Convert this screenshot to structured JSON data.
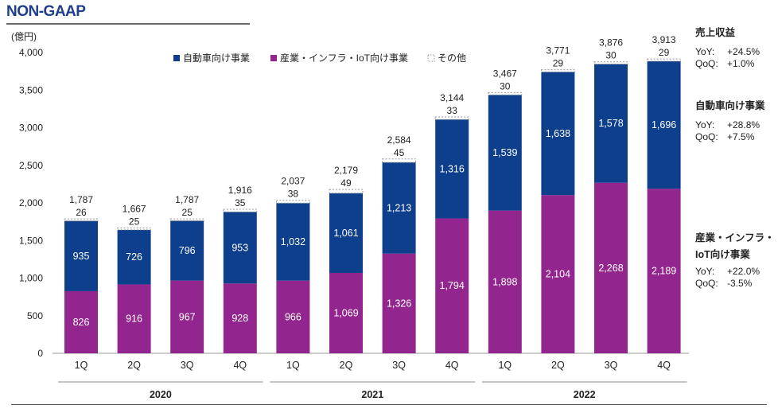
{
  "header": {
    "title": "NON-GAAP"
  },
  "chart_data": {
    "type": "bar",
    "stacked": true,
    "unit_label": "(億円)",
    "ylim": [
      0,
      4000
    ],
    "y_ticks": [
      0,
      500,
      1000,
      1500,
      2000,
      2500,
      3000,
      3500,
      4000
    ],
    "y_tick_labels": [
      "0",
      "500",
      "1,000",
      "1,500",
      "2,000",
      "2,500",
      "3,000",
      "3,500",
      "4,000"
    ],
    "categories": [
      "1Q",
      "2Q",
      "3Q",
      "4Q",
      "1Q",
      "2Q",
      "3Q",
      "4Q",
      "1Q",
      "2Q",
      "3Q",
      "4Q"
    ],
    "years": [
      {
        "label": "2020",
        "start": 0,
        "end": 3
      },
      {
        "label": "2021",
        "start": 4,
        "end": 7
      },
      {
        "label": "2022",
        "start": 8,
        "end": 11
      }
    ],
    "series": [
      {
        "name": "産業・インフラ・IoT向け事業",
        "color": "#93268e",
        "values": [
          826,
          916,
          967,
          928,
          966,
          1069,
          1326,
          1794,
          1898,
          2104,
          2268,
          2189
        ],
        "labels": [
          "826",
          "916",
          "967",
          "928",
          "966",
          "1,069",
          "1,326",
          "1,794",
          "1,898",
          "2,104",
          "2,268",
          "2,189"
        ]
      },
      {
        "name": "自動車向け事業",
        "color": "#0d3f8c",
        "values": [
          935,
          726,
          796,
          953,
          1032,
          1061,
          1213,
          1316,
          1539,
          1638,
          1578,
          1696
        ],
        "labels": [
          "935",
          "726",
          "796",
          "953",
          "1,032",
          "1,061",
          "1,213",
          "1,316",
          "1,539",
          "1,638",
          "1,578",
          "1,696"
        ]
      },
      {
        "name": "その他",
        "color": "#ffffff",
        "values": [
          26,
          25,
          25,
          35,
          38,
          49,
          45,
          33,
          30,
          29,
          30,
          29
        ],
        "labels": [
          "26",
          "25",
          "25",
          "35",
          "38",
          "49",
          "45",
          "33",
          "30",
          "29",
          "30",
          "29"
        ]
      }
    ],
    "totals": [
      1787,
      1667,
      1787,
      1916,
      2037,
      2179,
      2584,
      3144,
      3467,
      3771,
      3876,
      3913
    ],
    "total_labels": [
      "1,787",
      "1,667",
      "1,787",
      "1,916",
      "2,037",
      "2,179",
      "2,584",
      "3,144",
      "3,467",
      "3,771",
      "3,876",
      "3,913"
    ],
    "legend": [
      {
        "name": "自動車向け事業",
        "color": "#0d3f8c"
      },
      {
        "name": "産業・インフラ・IoT向け事業",
        "color": "#93268e"
      },
      {
        "name": "その他",
        "color": "#ffffff"
      }
    ],
    "legend_position": "top-center"
  },
  "side_panel": {
    "revenue": {
      "title": "売上収益",
      "yoy_label": "YoY:",
      "yoy": "+24.5%",
      "qoq_label": "QoQ:",
      "qoq": "+1.0%"
    },
    "auto": {
      "title": "自動車向け事業",
      "yoy_label": "YoY:",
      "yoy": "+28.8%",
      "qoq_label": "QoQ:",
      "qoq": "+7.5%"
    },
    "iiot": {
      "title_line1": "産業・インフラ・",
      "title_line2": "IoT向け事業",
      "yoy_label": "YoY:",
      "yoy": "+22.0%",
      "qoq_label": "QoQ:",
      "qoq": "-3.5%"
    }
  }
}
